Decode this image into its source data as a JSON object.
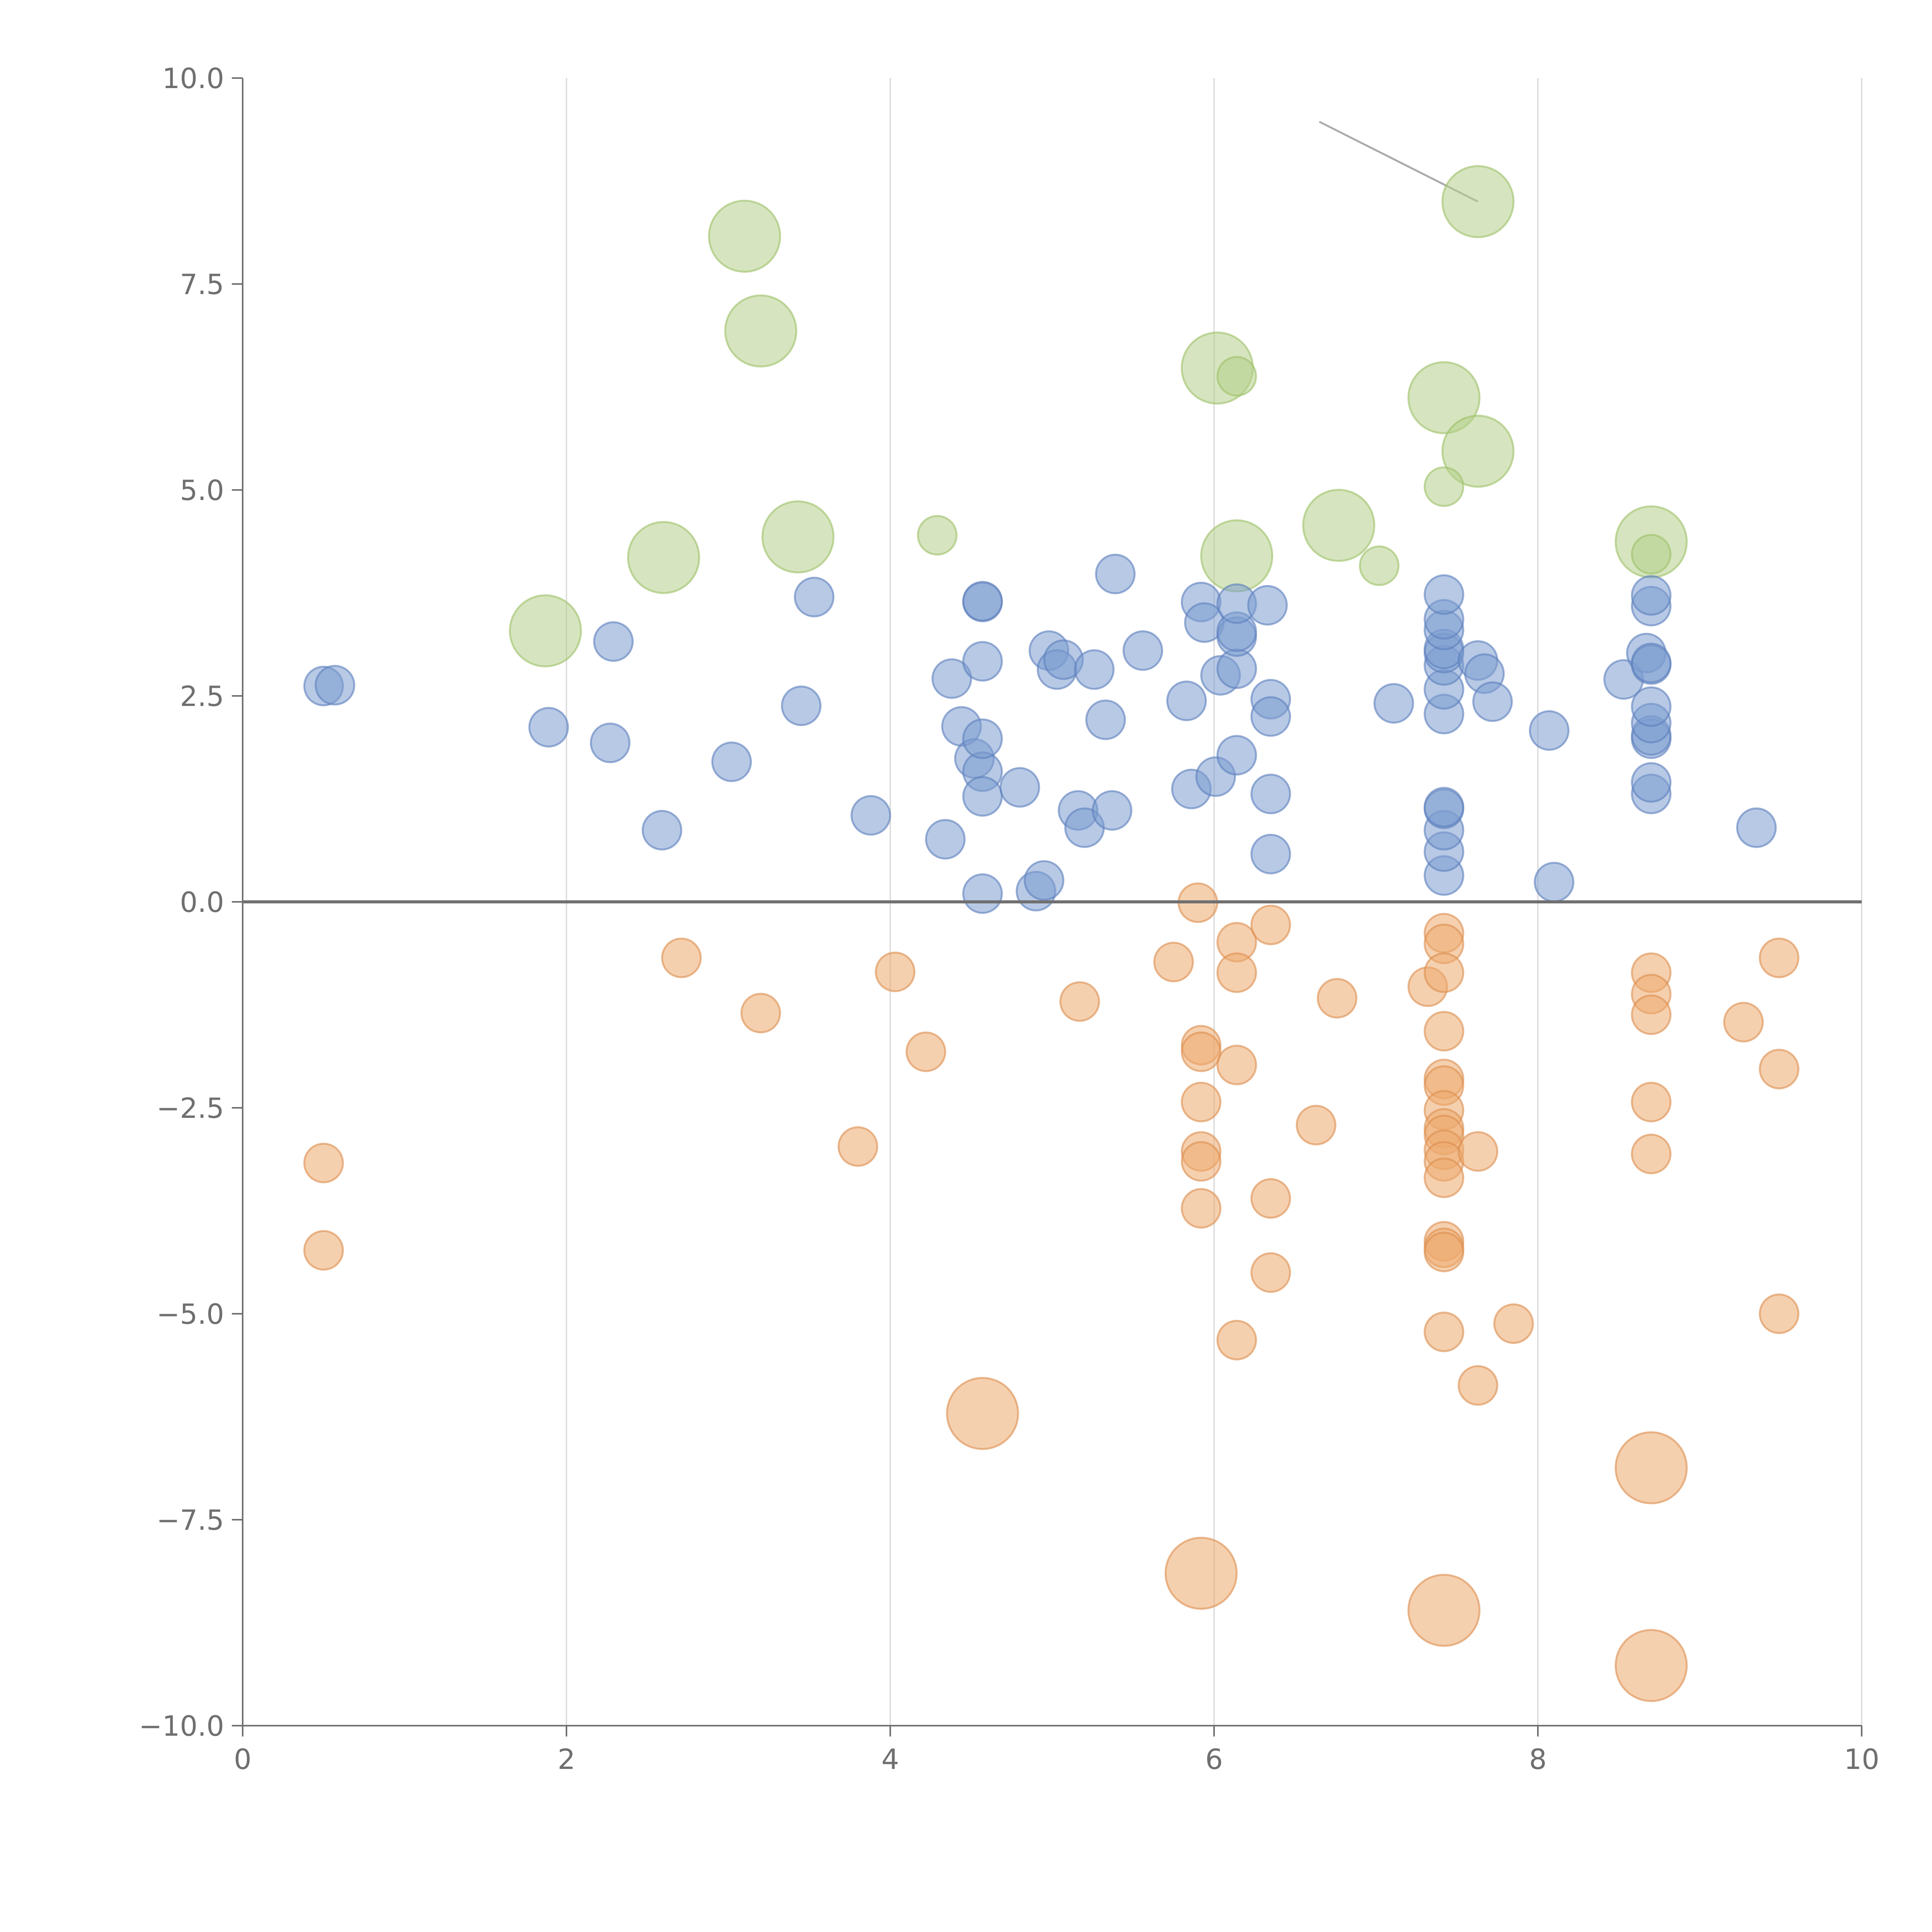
{
  "chart_data": {
    "type": "scatter",
    "title": "",
    "xlabel": "",
    "ylabel": "",
    "xlim": [
      0,
      10
    ],
    "ylim": [
      -10,
      10
    ],
    "grid": "vertical",
    "x_ticks": [
      "0",
      "2",
      "4",
      "6",
      "8",
      "10"
    ],
    "y_ticks": [
      "10.0",
      "7.5",
      "5.0",
      "2.5",
      "0.0",
      "−2.5",
      "−5.0",
      "−7.5",
      "−10.0"
    ],
    "x_tick_values": [
      0,
      2,
      4,
      6,
      8,
      10
    ],
    "y_tick_values": [
      10,
      7.5,
      5,
      2.5,
      0,
      -2.5,
      -5,
      -7.5,
      -10
    ],
    "reference_line_y": 0,
    "colors": {
      "blue": "#7b9ccf",
      "green": "#b5d08a",
      "orange": "#eca96e",
      "blue_stroke": "#5b7fbd",
      "green_stroke": "#9cbf68",
      "orange_stroke": "#dc8e4e"
    },
    "series": [
      {
        "name": "blue",
        "size": "small",
        "points": [
          [
            0.5,
            2.62
          ],
          [
            0.57,
            2.63
          ],
          [
            1.89,
            2.12
          ],
          [
            2.27,
            1.93
          ],
          [
            2.29,
            3.16
          ],
          [
            2.59,
            0.87
          ],
          [
            3.02,
            1.7
          ],
          [
            3.45,
            2.38
          ],
          [
            3.53,
            3.7
          ],
          [
            3.88,
            1.05
          ],
          [
            4.34,
            0.76
          ],
          [
            4.38,
            2.71
          ],
          [
            4.44,
            2.13
          ],
          [
            4.52,
            1.74
          ],
          [
            4.57,
            1.58
          ],
          [
            4.57,
            1.28
          ],
          [
            4.57,
            0.1
          ],
          [
            4.57,
            1.98
          ],
          [
            4.57,
            2.92
          ],
          [
            4.57,
            3.64
          ],
          [
            4.57,
            3.65
          ],
          [
            4.8,
            1.39
          ],
          [
            4.9,
            0.13
          ],
          [
            4.95,
            0.26
          ],
          [
            4.98,
            3.05
          ],
          [
            5.03,
            2.82
          ],
          [
            5.07,
            2.94
          ],
          [
            5.16,
            1.11
          ],
          [
            5.2,
            0.9
          ],
          [
            5.26,
            2.82
          ],
          [
            5.33,
            2.21
          ],
          [
            5.37,
            1.11
          ],
          [
            5.39,
            3.98
          ],
          [
            5.56,
            3.05
          ],
          [
            5.83,
            2.44
          ],
          [
            5.86,
            1.37
          ],
          [
            5.92,
            3.64
          ],
          [
            5.94,
            3.39
          ],
          [
            6.01,
            1.52
          ],
          [
            6.04,
            2.75
          ],
          [
            6.14,
            1.78
          ],
          [
            6.14,
            2.83
          ],
          [
            6.14,
            3.22
          ],
          [
            6.14,
            3.28
          ],
          [
            6.14,
            3.62
          ],
          [
            6.33,
            3.6
          ],
          [
            6.35,
            2.46
          ],
          [
            6.35,
            2.25
          ],
          [
            6.35,
            1.31
          ],
          [
            6.35,
            0.58
          ],
          [
            7.11,
            2.41
          ],
          [
            7.42,
            0.32
          ],
          [
            7.42,
            0.61
          ],
          [
            7.42,
            0.87
          ],
          [
            7.42,
            1.13
          ],
          [
            7.42,
            1.15
          ],
          [
            7.42,
            2.28
          ],
          [
            7.42,
            2.58
          ],
          [
            7.42,
            2.87
          ],
          [
            7.42,
            3.02
          ],
          [
            7.42,
            3.07
          ],
          [
            7.42,
            3.3
          ],
          [
            7.42,
            3.43
          ],
          [
            7.42,
            3.73
          ],
          [
            7.63,
            2.93
          ],
          [
            7.67,
            2.77
          ],
          [
            7.72,
            2.43
          ],
          [
            8.07,
            2.08
          ],
          [
            8.1,
            0.24
          ],
          [
            8.53,
            2.7
          ],
          [
            8.67,
            3.02
          ],
          [
            8.7,
            1.31
          ],
          [
            8.7,
            1.45
          ],
          [
            8.7,
            1.98
          ],
          [
            8.7,
            2.02
          ],
          [
            8.7,
            2.17
          ],
          [
            8.7,
            2.37
          ],
          [
            8.7,
            2.88
          ],
          [
            8.7,
            2.9
          ],
          [
            8.7,
            3.59
          ],
          [
            8.7,
            3.72
          ],
          [
            9.35,
            0.9
          ]
        ]
      },
      {
        "name": "orange",
        "size": "small",
        "points": [
          [
            0.5,
            -3.17
          ],
          [
            0.5,
            -4.23
          ],
          [
            2.71,
            -0.68
          ],
          [
            3.2,
            -1.35
          ],
          [
            3.8,
            -2.97
          ],
          [
            4.03,
            -0.85
          ],
          [
            4.22,
            -1.82
          ],
          [
            5.17,
            -1.21
          ],
          [
            5.75,
            -0.73
          ],
          [
            5.9,
            -0.01
          ],
          [
            5.92,
            -1.74
          ],
          [
            5.92,
            -1.82
          ],
          [
            5.92,
            -2.43
          ],
          [
            5.92,
            -3.03
          ],
          [
            5.92,
            -3.15
          ],
          [
            5.92,
            -3.72
          ],
          [
            6.14,
            -0.49
          ],
          [
            6.14,
            -0.86
          ],
          [
            6.14,
            -1.98
          ],
          [
            6.14,
            -5.32
          ],
          [
            6.35,
            -0.28
          ],
          [
            6.35,
            -3.6
          ],
          [
            6.35,
            -4.5
          ],
          [
            6.63,
            -2.71
          ],
          [
            6.76,
            -1.17
          ],
          [
            7.32,
            -1.03
          ],
          [
            7.42,
            -0.38
          ],
          [
            7.42,
            -0.51
          ],
          [
            7.42,
            -0.86
          ],
          [
            7.42,
            -1.57
          ],
          [
            7.42,
            -2.15
          ],
          [
            7.42,
            -2.23
          ],
          [
            7.42,
            -2.53
          ],
          [
            7.42,
            -2.75
          ],
          [
            7.42,
            -2.83
          ],
          [
            7.42,
            -3.01
          ],
          [
            7.42,
            -3.15
          ],
          [
            7.42,
            -3.35
          ],
          [
            7.42,
            -4.12
          ],
          [
            7.42,
            -4.2
          ],
          [
            7.42,
            -4.25
          ],
          [
            7.42,
            -5.22
          ],
          [
            7.63,
            -3.03
          ],
          [
            7.63,
            -5.87
          ],
          [
            7.85,
            -5.12
          ],
          [
            8.7,
            -0.86
          ],
          [
            8.7,
            -1.12
          ],
          [
            8.7,
            -1.37
          ],
          [
            8.7,
            -2.43
          ],
          [
            8.7,
            -3.06
          ],
          [
            9.27,
            -1.46
          ],
          [
            9.49,
            -0.68
          ],
          [
            9.49,
            -2.03
          ],
          [
            9.49,
            -5.0
          ]
        ]
      },
      {
        "name": "orange-large",
        "size": "large",
        "points": [
          [
            4.57,
            -6.21
          ],
          [
            5.92,
            -8.15
          ],
          [
            7.42,
            -8.6
          ],
          [
            8.7,
            -6.87
          ],
          [
            8.7,
            -9.27
          ]
        ]
      },
      {
        "name": "green",
        "size": "small",
        "points": [
          [
            4.29,
            4.45
          ],
          [
            6.14,
            6.38
          ],
          [
            7.02,
            4.08
          ],
          [
            7.42,
            5.04
          ],
          [
            8.7,
            4.22
          ]
        ]
      },
      {
        "name": "green-large",
        "size": "large",
        "points": [
          [
            1.87,
            3.29
          ],
          [
            2.6,
            4.18
          ],
          [
            3.1,
            8.08
          ],
          [
            3.2,
            6.93
          ],
          [
            3.43,
            4.43
          ],
          [
            6.02,
            6.48
          ],
          [
            6.14,
            4.2
          ],
          [
            6.77,
            4.57
          ],
          [
            7.42,
            6.12
          ],
          [
            7.63,
            5.47
          ],
          [
            7.63,
            8.5
          ],
          [
            8.7,
            4.37
          ]
        ]
      }
    ],
    "callout_line": {
      "from": [
        6.65,
        9.47
      ],
      "to": [
        7.63,
        8.5
      ]
    }
  }
}
